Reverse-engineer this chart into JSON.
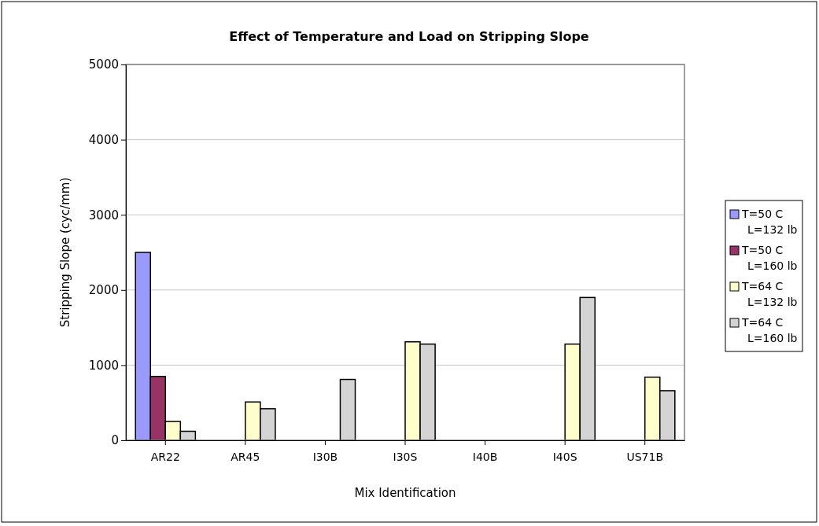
{
  "chart_data": {
    "type": "bar",
    "title": "Effect of Temperature and Load on Stripping Slope",
    "xlabel": "Mix Identification",
    "ylabel": "Stripping Slope (cyc/mm)",
    "categories": [
      "AR22",
      "AR45",
      "I30B",
      "I30S",
      "I40B",
      "I40S",
      "US71B"
    ],
    "series": [
      {
        "name": "T=50 C L=132 lb",
        "color": "#9999ff",
        "values": [
          2500,
          0,
          0,
          0,
          0,
          0,
          0
        ]
      },
      {
        "name": "T=50 C L=160 lb",
        "color": "#993366",
        "values": [
          850,
          0,
          0,
          0,
          0,
          0,
          0
        ]
      },
      {
        "name": "T=64 C L=132 lb",
        "color": "#ffffcc",
        "values": [
          250,
          510,
          0,
          1310,
          0,
          1280,
          840
        ]
      },
      {
        "name": "T=64 C L=160 lb",
        "color": "#d4d4d4",
        "values": [
          120,
          420,
          810,
          1280,
          0,
          1900,
          660
        ]
      }
    ],
    "ylim": [
      0,
      5000
    ],
    "yticks": [
      0,
      1000,
      2000,
      3000,
      4000,
      5000
    ],
    "grid": "y",
    "legend": "right"
  }
}
